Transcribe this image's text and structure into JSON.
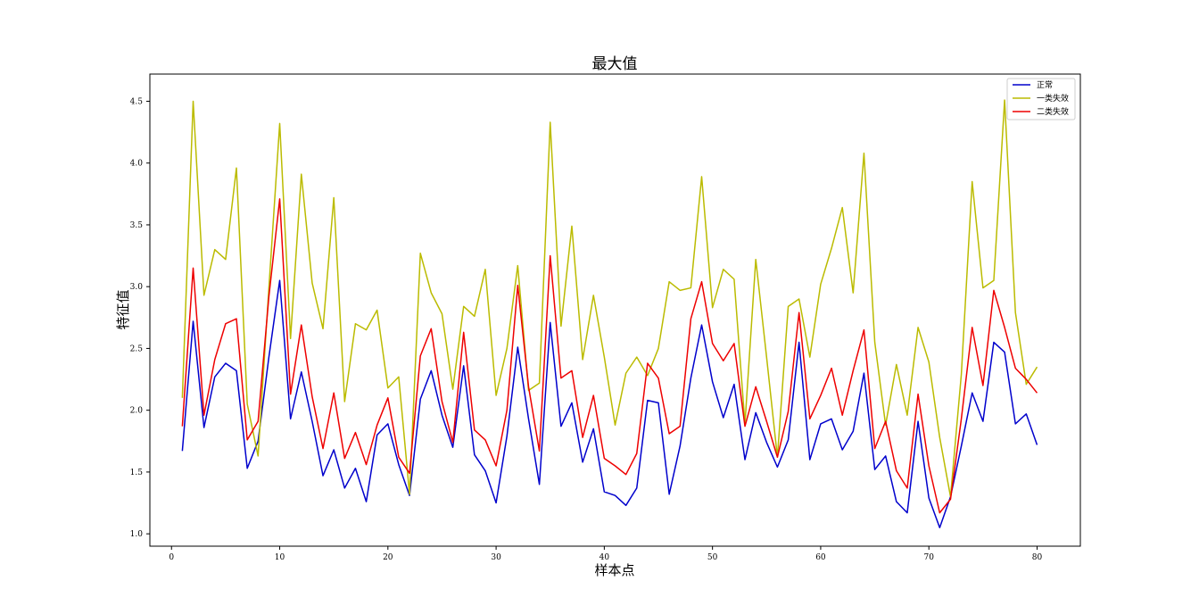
{
  "chart_data": {
    "type": "line",
    "title": "最大值",
    "xlabel": "样本点",
    "ylabel": "特征值",
    "xlim": [
      -2,
      84
    ],
    "ylim": [
      0.9,
      4.72
    ],
    "xticks": [
      0,
      10,
      20,
      30,
      40,
      50,
      60,
      70,
      80
    ],
    "yticks": [
      1.0,
      1.5,
      2.0,
      2.5,
      3.0,
      3.5,
      4.0,
      4.5
    ],
    "grid": false,
    "legend_position": "top-right",
    "x": [
      1,
      2,
      3,
      4,
      5,
      6,
      7,
      8,
      9,
      10,
      11,
      12,
      13,
      14,
      15,
      16,
      17,
      18,
      19,
      20,
      21,
      22,
      23,
      24,
      25,
      26,
      27,
      28,
      29,
      30,
      31,
      32,
      33,
      34,
      35,
      36,
      37,
      38,
      39,
      40,
      41,
      42,
      43,
      44,
      45,
      46,
      47,
      48,
      49,
      50,
      51,
      52,
      53,
      54,
      55,
      56,
      57,
      58,
      59,
      60,
      61,
      62,
      63,
      64,
      65,
      66,
      67,
      68,
      69,
      70,
      71,
      72,
      73,
      74,
      75,
      76,
      77,
      78,
      79,
      80
    ],
    "series": [
      {
        "name": "正常",
        "color": "#0000cc",
        "values": [
          1.67,
          2.72,
          1.86,
          2.27,
          2.38,
          2.32,
          1.53,
          1.75,
          2.43,
          3.05,
          1.93,
          2.31,
          1.91,
          1.47,
          1.68,
          1.37,
          1.53,
          1.26,
          1.8,
          1.89,
          1.56,
          1.31,
          2.09,
          2.32,
          1.96,
          1.7,
          2.36,
          1.64,
          1.51,
          1.25,
          1.79,
          2.51,
          1.93,
          1.4,
          2.71,
          1.87,
          2.06,
          1.58,
          1.85,
          1.34,
          1.31,
          1.23,
          1.37,
          2.08,
          2.06,
          1.32,
          1.71,
          2.26,
          2.69,
          2.23,
          1.94,
          2.21,
          1.6,
          1.98,
          1.74,
          1.54,
          1.76,
          2.55,
          1.6,
          1.89,
          1.93,
          1.68,
          1.83,
          2.3,
          1.52,
          1.63,
          1.26,
          1.17,
          1.91,
          1.29,
          1.05,
          1.3,
          1.71,
          2.14,
          1.91,
          2.55,
          2.47,
          1.89,
          1.97,
          1.72
        ]
      },
      {
        "name": "一类失效",
        "color": "#bbbb00",
        "values": [
          2.1,
          4.5,
          2.93,
          3.3,
          3.22,
          3.96,
          2.05,
          1.63,
          2.99,
          4.32,
          2.58,
          3.91,
          3.03,
          2.66,
          3.72,
          2.07,
          2.7,
          2.65,
          2.81,
          2.18,
          2.27,
          1.32,
          3.27,
          2.95,
          2.78,
          2.17,
          2.84,
          2.76,
          3.14,
          2.12,
          2.5,
          3.17,
          2.16,
          2.22,
          4.33,
          2.68,
          3.49,
          2.41,
          2.93,
          2.43,
          1.88,
          2.3,
          2.43,
          2.28,
          2.5,
          3.04,
          2.97,
          2.99,
          3.89,
          2.83,
          3.14,
          3.06,
          1.89,
          3.22,
          2.43,
          1.62,
          2.84,
          2.9,
          2.43,
          3.02,
          3.31,
          3.64,
          2.95,
          4.08,
          2.55,
          1.88,
          2.37,
          1.96,
          2.67,
          2.39,
          1.78,
          1.3,
          2.29,
          3.85,
          2.99,
          3.05,
          4.51,
          2.79,
          2.21,
          2.35
        ]
      },
      {
        "name": "二类失效",
        "color": "#ee0000",
        "values": [
          1.87,
          3.15,
          1.96,
          2.41,
          2.7,
          2.74,
          1.76,
          1.91,
          2.92,
          3.71,
          2.13,
          2.69,
          2.11,
          1.69,
          2.14,
          1.61,
          1.82,
          1.56,
          1.88,
          2.1,
          1.62,
          1.49,
          2.44,
          2.66,
          2.07,
          1.74,
          2.63,
          1.84,
          1.76,
          1.55,
          2.0,
          3.01,
          2.19,
          1.67,
          3.25,
          2.26,
          2.32,
          1.78,
          2.12,
          1.61,
          1.55,
          1.48,
          1.65,
          2.38,
          2.26,
          1.81,
          1.87,
          2.74,
          3.04,
          2.54,
          2.4,
          2.54,
          1.87,
          2.19,
          1.91,
          1.62,
          1.99,
          2.79,
          1.93,
          2.12,
          2.34,
          1.96,
          2.32,
          2.65,
          1.69,
          1.91,
          1.51,
          1.37,
          2.13,
          1.55,
          1.17,
          1.28,
          1.93,
          2.67,
          2.2,
          2.97,
          2.67,
          2.34,
          2.25,
          2.14
        ]
      }
    ]
  }
}
